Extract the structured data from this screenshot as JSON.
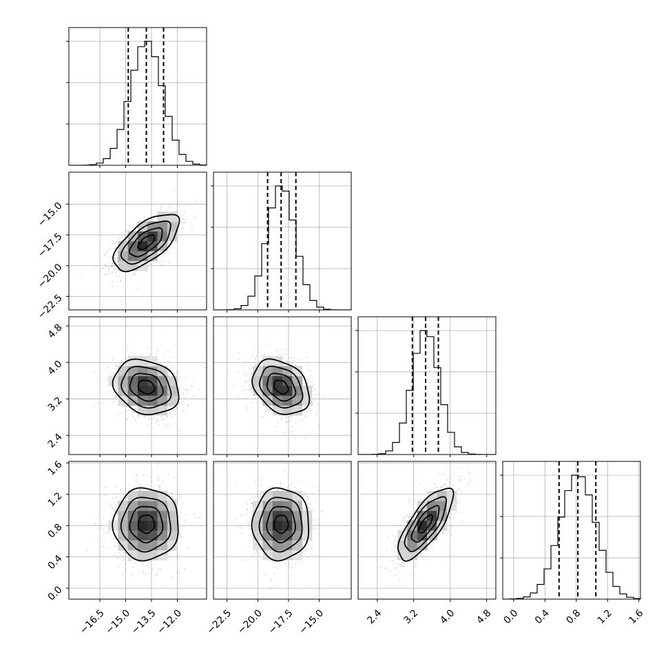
{
  "chart_data": {
    "type": "corner",
    "parameters": [
      {
        "range": [
          -18.3,
          -10.3
        ],
        "ticks": [
          -16.5,
          -15.0,
          -13.5,
          -12.0
        ],
        "tick_labels": [
          "−16.5",
          "−15.0",
          "−13.5",
          "−12.0"
        ],
        "quantiles": [
          -14.85,
          -13.8,
          -12.8
        ],
        "mean": -13.8,
        "sd": 0.95
      },
      {
        "range": [
          -23.6,
          -12.4
        ],
        "ticks": [
          -22.5,
          -20.0,
          -17.5,
          -15.0
        ],
        "tick_labels": [
          "−22.5",
          "−20.0",
          "−17.5",
          "−15.0"
        ],
        "quantiles": [
          -19.2,
          -18.1,
          -16.9
        ],
        "mean": -18.1,
        "sd": 1.15
      },
      {
        "range": [
          1.98,
          5.0
        ],
        "ticks": [
          2.4,
          3.2,
          4.0,
          4.8
        ],
        "tick_labels": [
          "2.4",
          "3.2",
          "4.0",
          "4.8"
        ],
        "quantiles": [
          3.17,
          3.46,
          3.74
        ],
        "mean": 3.46,
        "sd": 0.3
      },
      {
        "range": [
          -0.14,
          1.62
        ],
        "ticks": [
          0.0,
          0.4,
          0.8,
          1.2,
          1.6
        ],
        "tick_labels": [
          "0.0",
          "0.4",
          "0.8",
          "1.2",
          "1.6"
        ],
        "quantiles": [
          0.58,
          0.82,
          1.05
        ],
        "mean": 0.82,
        "sd": 0.23
      }
    ],
    "correlations": {
      "0-1": 0.65,
      "0-2": -0.2,
      "1-2": -0.3,
      "0-3": 0.0,
      "1-3": 0.0,
      "2-3": 0.75
    },
    "histogram_bins": 20,
    "contour_levels_sigma": [
      0.5,
      1.0,
      1.5,
      2.0
    ],
    "grid": true,
    "quantile_style": "dashed",
    "scatter_color": "#888888"
  }
}
